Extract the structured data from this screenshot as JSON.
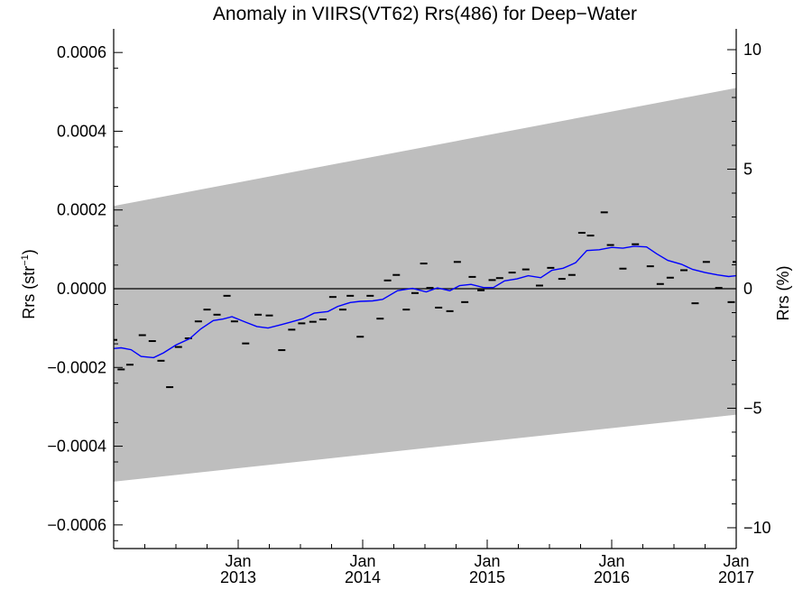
{
  "chart_data": {
    "type": "line",
    "title": "Anomaly in VIIRS(VT62) Rrs(486) for Deep−Water",
    "ylabel_left": "Rrs (str",
    "ylabel_left_sup": "−1",
    "ylabel_left_close": ")",
    "ylabel_right": "Rrs (%)",
    "xlim": [
      2012.0,
      2017.0
    ],
    "ylim_left": [
      -0.00066,
      0.00066
    ],
    "ylim_right": [
      -10.87,
      10.87
    ],
    "left_ticks": [
      {
        "value": 0.0006,
        "label": "0.0006"
      },
      {
        "value": 0.0004,
        "label": "0.0004"
      },
      {
        "value": 0.0002,
        "label": "0.0002"
      },
      {
        "value": 0.0,
        "label": "0.0000"
      },
      {
        "value": -0.0002,
        "label": "−0.0002"
      },
      {
        "value": -0.0004,
        "label": "−0.0004"
      },
      {
        "value": -0.0006,
        "label": "−0.0006"
      }
    ],
    "right_ticks": [
      {
        "value": 10,
        "label": "10"
      },
      {
        "value": 5,
        "label": "5"
      },
      {
        "value": 0,
        "label": "0"
      },
      {
        "value": -5,
        "label": "−5"
      },
      {
        "value": -10,
        "label": "−10"
      }
    ],
    "x_ticks": [
      {
        "value": 2013.0,
        "month": "Jan",
        "year": "2013"
      },
      {
        "value": 2014.0,
        "month": "Jan",
        "year": "2014"
      },
      {
        "value": 2015.0,
        "month": "Jan",
        "year": "2015"
      },
      {
        "value": 2016.0,
        "month": "Jan",
        "year": "2016"
      },
      {
        "value": 2017.0,
        "month": "Jan",
        "year": "2017"
      }
    ],
    "uncertainty_band": {
      "x": [
        2012.0,
        2017.0
      ],
      "upper": [
        0.00021,
        0.00051
      ],
      "lower": [
        -0.00049,
        -0.00032
      ],
      "color": "#bebebe"
    },
    "zero_line": 0.0,
    "series": [
      {
        "style": "marker-dash",
        "color": "#000000",
        "x": [
          2012.0,
          2012.06,
          2012.13,
          2012.23,
          2012.31,
          2012.38,
          2012.45,
          2012.52,
          2012.6,
          2012.68,
          2012.75,
          2012.83,
          2012.91,
          2012.97,
          2013.06,
          2013.16,
          2013.25,
          2013.35,
          2013.43,
          2013.51,
          2013.6,
          2013.68,
          2013.76,
          2013.84,
          2013.9,
          2013.98,
          2014.06,
          2014.14,
          2014.2,
          2014.27,
          2014.35,
          2014.42,
          2014.49,
          2014.54,
          2014.61,
          2014.7,
          2014.76,
          2014.82,
          2014.88,
          2014.95,
          2015.04,
          2015.1,
          2015.2,
          2015.31,
          2015.42,
          2015.51,
          2015.6,
          2015.68,
          2015.76,
          2015.83,
          2015.94,
          2015.99,
          2016.09,
          2016.19,
          2016.31,
          2016.39,
          2016.47,
          2016.58,
          2016.67,
          2016.76,
          2016.86,
          2016.96,
          2017.0
        ],
        "values": [
          -0.00013,
          -0.000205,
          -0.000193,
          -0.000118,
          -0.000133,
          -0.000183,
          -0.00025,
          -0.000148,
          -0.000126,
          -8.3e-05,
          -5.3e-05,
          -6.6e-05,
          -1.8e-05,
          -8.3e-05,
          -0.000139,
          -6.6e-05,
          -6.8e-05,
          -0.000156,
          -0.000104,
          -8.8e-05,
          -8.4e-05,
          -7.8e-05,
          -2.1e-05,
          -5.3e-05,
          -1.8e-05,
          -0.000122,
          -1.8e-05,
          -7.6e-05,
          2.1e-05,
          3.5e-05,
          -5.3e-05,
          -1.1e-05,
          6.4e-05,
          2e-06,
          -4.8e-05,
          -5.7e-05,
          6.8e-05,
          -3.4e-05,
          3e-05,
          -4e-06,
          2.2e-05,
          2.7e-05,
          4.1e-05,
          4.9e-05,
          8e-06,
          5.3e-05,
          2.5e-05,
          3.5e-05,
          0.000142,
          0.000135,
          0.000194,
          0.000111,
          5.1e-05,
          0.000113,
          5.7e-05,
          1.2e-05,
          2.8e-05,
          4.7e-05,
          -3.7e-05,
          6.8e-05,
          2e-06,
          -3.4e-05,
          6.8e-05
        ]
      },
      {
        "style": "line",
        "color": "#0000ff",
        "x": [
          2012.0,
          2012.06,
          2012.14,
          2012.22,
          2012.32,
          2012.4,
          2012.5,
          2012.61,
          2012.7,
          2012.8,
          2012.88,
          2012.95,
          2013.06,
          2013.15,
          2013.24,
          2013.34,
          2013.42,
          2013.52,
          2013.61,
          2013.72,
          2013.8,
          2013.9,
          2013.98,
          2014.08,
          2014.16,
          2014.28,
          2014.4,
          2014.51,
          2014.6,
          2014.7,
          2014.78,
          2014.87,
          2014.97,
          2015.05,
          2015.14,
          2015.24,
          2015.33,
          2015.43,
          2015.52,
          2015.61,
          2015.71,
          2015.8,
          2015.9,
          2016.0,
          2016.09,
          2016.18,
          2016.28,
          2016.36,
          2016.45,
          2016.56,
          2016.65,
          2016.75,
          2016.85,
          2016.94,
          2017.0
        ],
        "values": [
          -0.000152,
          -0.00015,
          -0.000155,
          -0.000172,
          -0.000175,
          -0.000163,
          -0.000143,
          -0.000127,
          -0.000102,
          -8.1e-05,
          -7.7e-05,
          -7.1e-05,
          -8.5e-05,
          -9.6e-05,
          -0.0001,
          -9.2e-05,
          -8.5e-05,
          -7.6e-05,
          -6.2e-05,
          -5.8e-05,
          -4.5e-05,
          -3.5e-05,
          -3.2e-05,
          -3.1e-05,
          -2.7e-05,
          -5e-06,
          1e-06,
          -8e-06,
          2e-06,
          -5e-06,
          8e-06,
          1.1e-05,
          3e-06,
          3e-06,
          2e-05,
          2.5e-05,
          3.3e-05,
          2.8e-05,
          4.7e-05,
          5.2e-05,
          6.6e-05,
          9.7e-05,
          9.9e-05,
          0.000105,
          0.000103,
          0.000108,
          0.000106,
          8.9e-05,
          7.2e-05,
          6.2e-05,
          4.9e-05,
          4.1e-05,
          3.5e-05,
          3.1e-05,
          3.3e-05
        ]
      }
    ]
  }
}
